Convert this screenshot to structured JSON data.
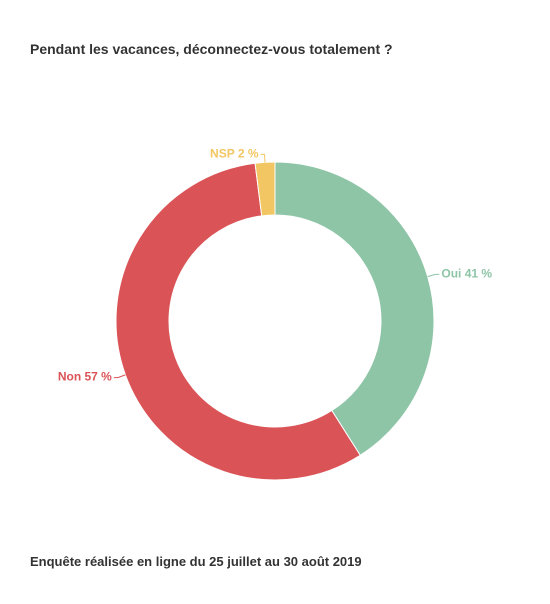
{
  "chart_data": {
    "type": "pie",
    "title": "Pendant les vacances, déconnectez-vous totalement ?",
    "source": "Enquête réalisée en ligne du 25 juillet au 30 août 2019",
    "slices": [
      {
        "label": "Oui 41 %",
        "value": 41,
        "color": "#8ec5a7"
      },
      {
        "label": "Non 57 %",
        "value": 57,
        "color": "#da5356"
      },
      {
        "label": "NSP 2 %",
        "value": 2,
        "color": "#f2c663"
      }
    ]
  }
}
